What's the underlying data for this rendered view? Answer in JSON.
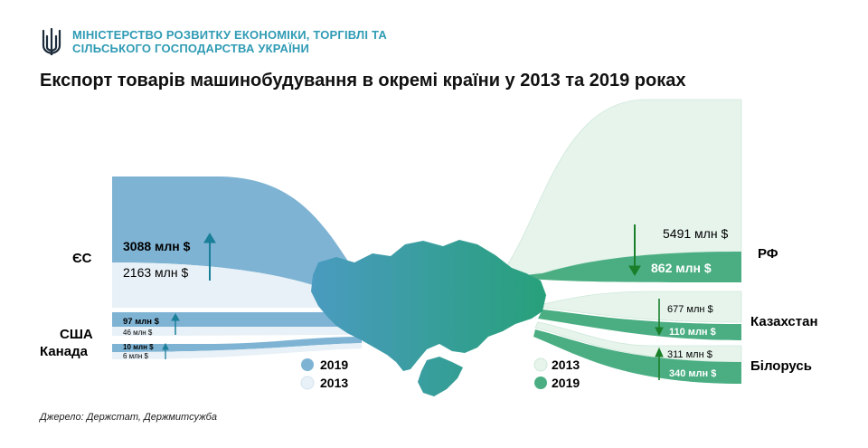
{
  "header": {
    "ministry_line1": "МІНІСТЕРСТВО РОЗВИТКУ ЕКОНОМІКИ, ТОРГІВЛІ ТА",
    "ministry_line2": "СІЛЬСЬКОГО ГОСПОДАРСТВА УКРАЇНИ",
    "logo_icon": "trident-icon"
  },
  "source": "Джерело: Держстат, Держмитсужба",
  "colors": {
    "west_2019": "#7eb3d4",
    "west_2013": "#e8f1f7",
    "east_2013": "#e6f4ec",
    "east_2019": "#4aae82",
    "map_west": "#4a9bc0",
    "map_east": "#27a07a",
    "arrow_up": "#1a7f99",
    "arrow_down_green": "#1a7f2a"
  },
  "chart_data": {
    "type": "sankey",
    "title": "Експорт товарів машинобудування в окремі країни у 2013 та 2019 роках",
    "unit": "млн $",
    "years": [
      "2013",
      "2019"
    ],
    "legend_left": [
      {
        "year": "2019",
        "color": "#7eb3d4"
      },
      {
        "year": "2013",
        "color": "#e8f1f7"
      }
    ],
    "legend_right": [
      {
        "year": "2013",
        "color": "#e6f4ec"
      },
      {
        "year": "2019",
        "color": "#4aae82"
      }
    ],
    "countries": [
      {
        "name": "ЄС",
        "side": "left",
        "v2019": 3088,
        "v2013": 2163,
        "trend": "up",
        "label2019": "3088 млн $",
        "label2013": "2163 млн $"
      },
      {
        "name": "США",
        "side": "left",
        "v2019": 97,
        "v2013": 46,
        "trend": "up",
        "label2019": "97 млн $",
        "label2013": "46 млн $"
      },
      {
        "name": "Канада",
        "side": "left",
        "v2019": 10,
        "v2013": 6,
        "trend": "up",
        "label2019": "10 млн $",
        "label2013": "6 млн $"
      },
      {
        "name": "РФ",
        "side": "right",
        "v2013": 5491,
        "v2019": 862,
        "trend": "down",
        "label2013": "5491 млн $",
        "label2019": "862 млн $"
      },
      {
        "name": "Казахстан",
        "side": "right",
        "v2013": 677,
        "v2019": 110,
        "trend": "down",
        "label2013": "677 млн $",
        "label2019": "110 млн $"
      },
      {
        "name": "Білорусь",
        "side": "right",
        "v2013": 311,
        "v2019": 340,
        "trend": "up",
        "label2013": "311 млн $",
        "label2019": "340 млн $"
      }
    ]
  }
}
